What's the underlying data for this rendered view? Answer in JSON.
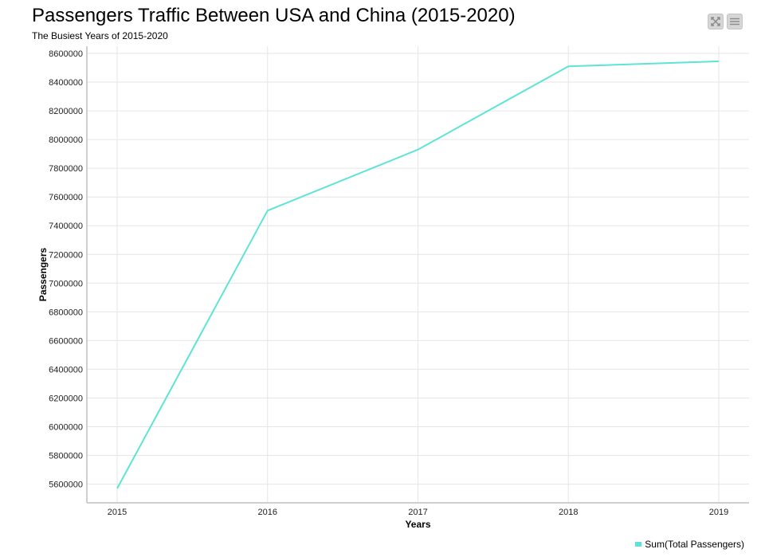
{
  "title": "Passengers Traffic Between USA and China (2015-2020)",
  "subtitle": "The Busiest Years of 2015-2020",
  "toolbar": {
    "fullscreen_icon": "fullscreen-icon",
    "menu_icon": "hamburger-menu-icon"
  },
  "colors": {
    "series": "#5ee4d6",
    "grid": "#e6e6e6",
    "axis": "#cfcfcf"
  },
  "chart_data": {
    "type": "line",
    "title": "Passengers Traffic Between USA and China (2015-2020)",
    "subtitle": "The Busiest Years of 2015-2020",
    "xlabel": "Years",
    "ylabel": "Passengers",
    "categories": [
      "2015",
      "2016",
      "2017",
      "2018",
      "2019"
    ],
    "series": [
      {
        "name": "Sum(Total Passengers)",
        "values": [
          5570000,
          7505000,
          7930000,
          8510000,
          8545000
        ]
      }
    ],
    "ylim": [
      5470000,
      8650000
    ],
    "yticks": [
      5600000,
      5800000,
      6000000,
      6200000,
      6400000,
      6600000,
      6800000,
      7000000,
      7200000,
      7400000,
      7600000,
      7800000,
      8000000,
      8200000,
      8400000,
      8600000
    ],
    "ytick_labels": [
      "5600000",
      "5800000",
      "6000000",
      "6200000",
      "6400000",
      "6600000",
      "6800000",
      "7000000",
      "7200000",
      "7400000",
      "7600000",
      "7800000",
      "8000000",
      "8200000",
      "8400000",
      "8600000"
    ],
    "grid": true,
    "legend": "bottom-right"
  }
}
